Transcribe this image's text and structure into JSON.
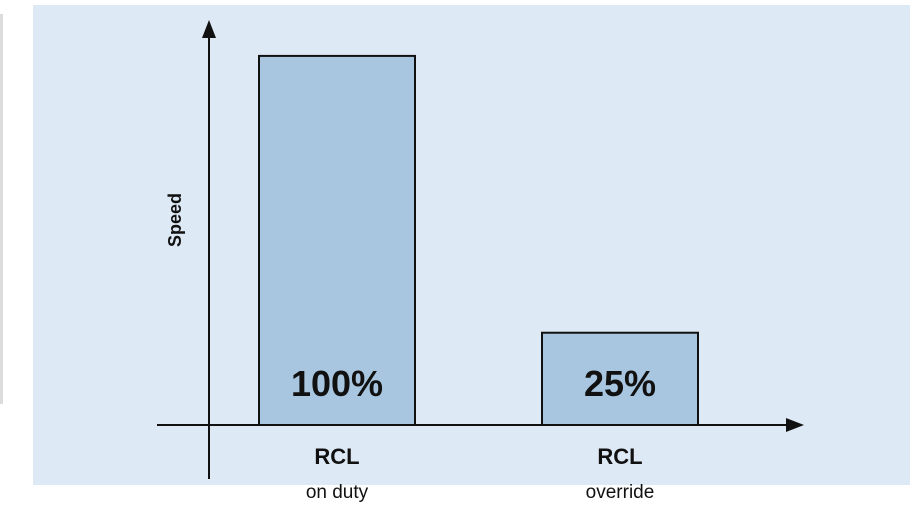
{
  "chart_data": {
    "type": "bar",
    "ylabel": "Speed",
    "ylim": [
      0,
      110
    ],
    "grid": false,
    "categories": [
      {
        "label": "RCL",
        "sublabel": "on duty"
      },
      {
        "label": "RCL",
        "sublabel": "override"
      }
    ],
    "values": [
      100,
      25
    ],
    "data_labels": [
      "100%",
      "25%"
    ]
  },
  "colors": {
    "panel_background": "#dde9f5",
    "bar_fill": "#a8c6e0",
    "bar_stroke": "#111111",
    "axis": "#111111",
    "text": "#111111"
  }
}
